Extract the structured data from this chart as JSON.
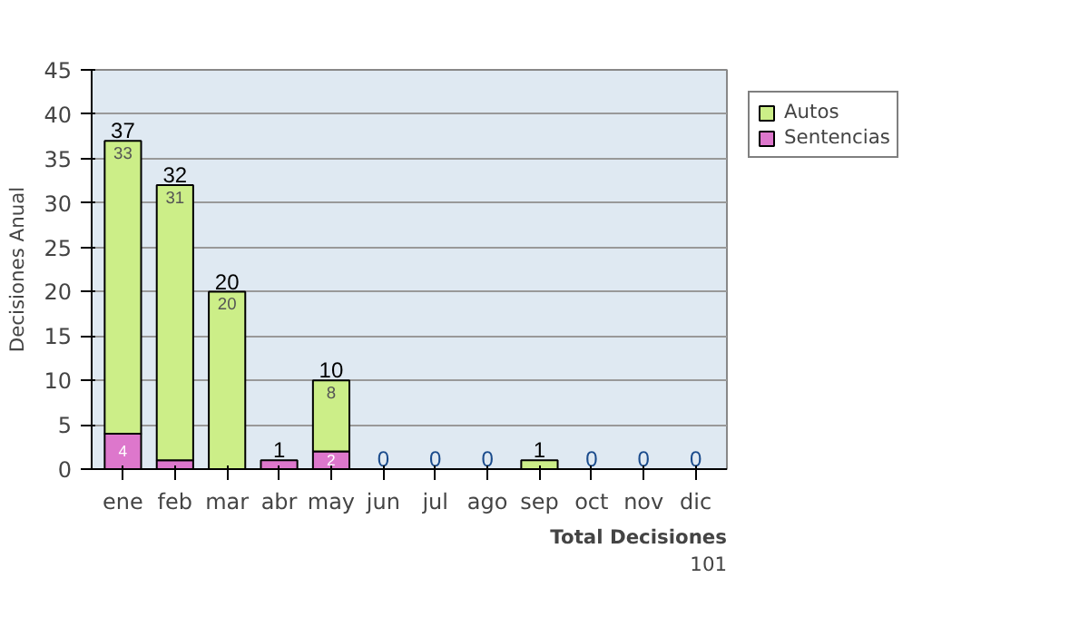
{
  "chart_data": {
    "type": "bar",
    "stacked": true,
    "ylabel": "Decisiones Anual",
    "categories": [
      "ene",
      "feb",
      "mar",
      "abr",
      "may",
      "jun",
      "jul",
      "ago",
      "sep",
      "oct",
      "nov",
      "dic"
    ],
    "series": [
      {
        "name": "Sentencias",
        "color": "#dd77cc",
        "values": [
          4,
          1,
          0,
          1,
          2,
          0,
          0,
          0,
          0,
          0,
          0,
          0
        ],
        "value_labels": [
          "4",
          null,
          null,
          null,
          "2",
          null,
          null,
          null,
          null,
          null,
          null,
          null
        ]
      },
      {
        "name": "Autos",
        "color": "#ccee88",
        "values": [
          33,
          31,
          20,
          0,
          8,
          0,
          0,
          0,
          1,
          0,
          0,
          0
        ],
        "value_labels": [
          "33",
          "31",
          "20",
          null,
          "8",
          null,
          null,
          null,
          null,
          null,
          null,
          null
        ]
      }
    ],
    "totals": [
      "37",
      "32",
      "20",
      "1",
      "10",
      "0",
      "0",
      "0",
      "1",
      "0",
      "0",
      "0"
    ],
    "ylim": [
      0,
      45
    ],
    "yticks": [
      0,
      5,
      10,
      15,
      20,
      25,
      30,
      35,
      40,
      45
    ],
    "grid": "y",
    "legend": "right",
    "annotations": [
      "Total Decisiones",
      "101"
    ]
  }
}
